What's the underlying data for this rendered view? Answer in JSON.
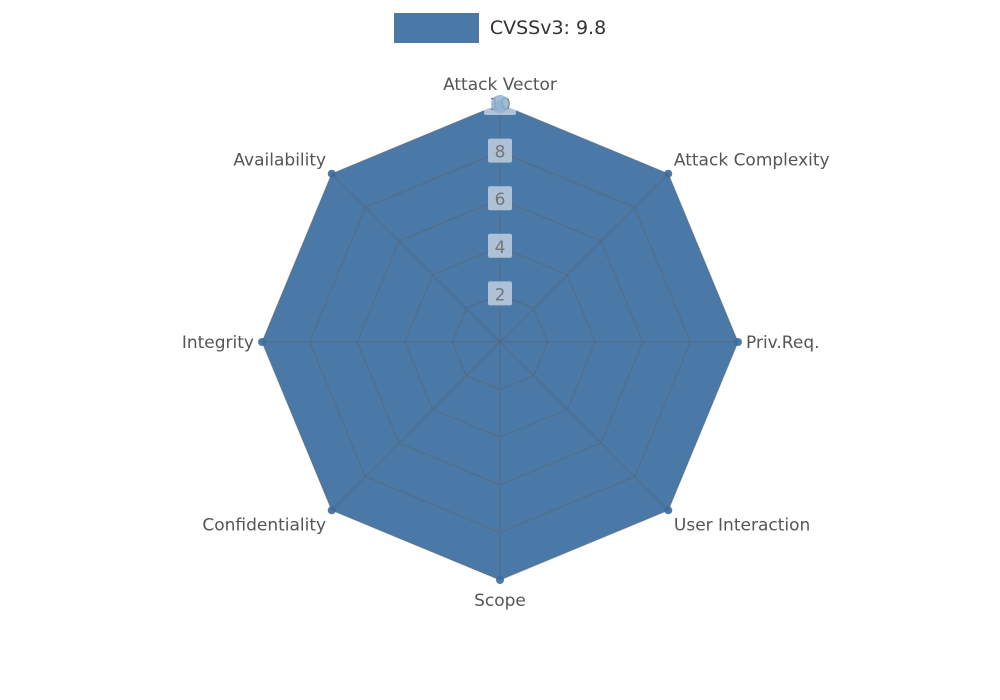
{
  "chart_data": {
    "type": "radar",
    "title": "",
    "legend": {
      "position": "top",
      "label": "CVSSv3: 9.8"
    },
    "categories": [
      "Attack Vector",
      "Attack Complexity",
      "Priv.Req.",
      "User Interaction",
      "Scope",
      "Confidentiality",
      "Integrity",
      "Availability"
    ],
    "series": [
      {
        "name": "CVSSv3: 9.8",
        "color": "#4a79a8",
        "values": [
          10,
          10,
          10,
          10,
          10,
          10,
          10,
          10
        ]
      }
    ],
    "ticks": [
      2,
      4,
      6,
      8,
      10
    ],
    "rlim": [
      0,
      10
    ],
    "grid": true,
    "colors": {
      "series_fill": "#4a79a8",
      "grid_line": "#5f5f5f",
      "axis_label": "#555555",
      "tick_label": "#757575",
      "tick_label_bg": "rgba(255,255,255,0.55)",
      "legend_text": "#333333",
      "marker": "#3d6c9c",
      "apex_marker": "#8fb2d4"
    }
  }
}
